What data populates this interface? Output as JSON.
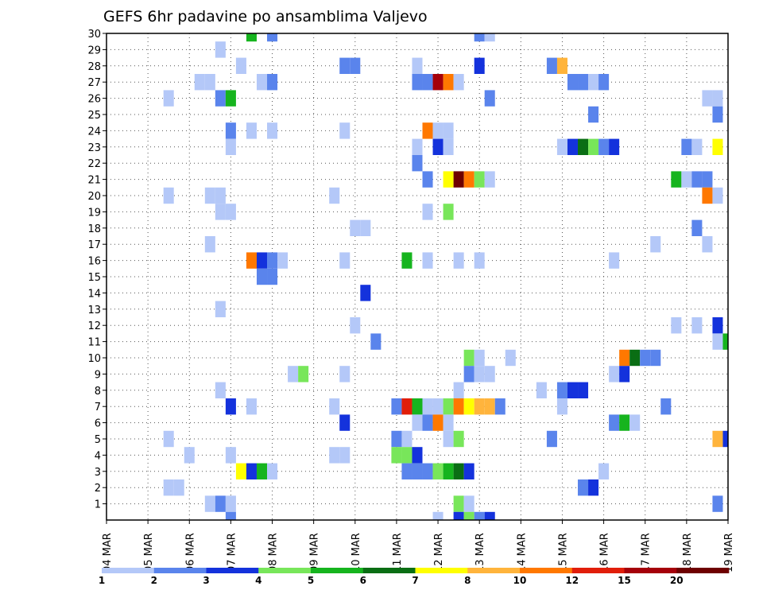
{
  "chart_data": {
    "type": "heatmap",
    "title": "GEFS 6hr padavine po ansamblima Valjevo",
    "xlabel": "",
    "ylabel": "",
    "x_tick_labels": [
      "04 MAR",
      "05 MAR",
      "06 MAR",
      "07 MAR",
      "08 MAR",
      "09 MAR",
      "10 MAR",
      "11 MAR",
      "12 MAR",
      "13 MAR",
      "14 MAR",
      "15 MAR",
      "16 MAR",
      "17 MAR",
      "18 MAR",
      "19 MAR"
    ],
    "y_tick_labels": [
      "1",
      "2",
      "3",
      "4",
      "5",
      "6",
      "7",
      "8",
      "9",
      "10",
      "11",
      "12",
      "13",
      "14",
      "15",
      "16",
      "17",
      "18",
      "19",
      "20",
      "21",
      "22",
      "23",
      "24",
      "25",
      "26",
      "27",
      "28",
      "29",
      "30"
    ],
    "x_unit": "6-hour step",
    "x_range": [
      0,
      60
    ],
    "y_range": [
      0,
      30
    ],
    "grid": true,
    "colorbar": {
      "labels": [
        "1",
        "2",
        "3",
        "4",
        "5",
        "6",
        "7",
        "8",
        "10",
        "12",
        "15",
        "20"
      ],
      "colors": [
        "#b4c8f8",
        "#5a84ec",
        "#1432dc",
        "#78e65a",
        "#16b41e",
        "#0a6e14",
        "#ffff00",
        "#ffb43c",
        "#ff7800",
        "#e11e0a",
        "#a5000a",
        "#6e0000"
      ],
      "placement": "bottom"
    },
    "cells": [
      [
        14,
        30,
        5
      ],
      [
        16,
        30,
        2
      ],
      [
        36,
        30,
        2
      ],
      [
        37,
        30,
        1
      ],
      [
        11,
        29,
        1
      ],
      [
        13,
        28,
        1
      ],
      [
        23,
        28,
        2
      ],
      [
        24,
        28,
        2
      ],
      [
        30,
        28,
        1
      ],
      [
        36,
        28,
        3
      ],
      [
        43,
        28,
        2
      ],
      [
        44,
        28,
        8
      ],
      [
        9,
        27,
        1
      ],
      [
        10,
        27,
        1
      ],
      [
        15,
        27,
        1
      ],
      [
        16,
        27,
        2
      ],
      [
        30,
        27,
        2
      ],
      [
        31,
        27,
        2
      ],
      [
        32,
        27,
        11
      ],
      [
        33,
        27,
        9
      ],
      [
        34,
        27,
        1
      ],
      [
        45,
        27,
        2
      ],
      [
        46,
        27,
        2
      ],
      [
        47,
        27,
        1
      ],
      [
        48,
        27,
        2
      ],
      [
        6,
        26,
        1
      ],
      [
        11,
        26,
        2
      ],
      [
        12,
        26,
        5
      ],
      [
        37,
        26,
        2
      ],
      [
        58,
        26,
        1
      ],
      [
        59,
        26,
        1
      ],
      [
        47,
        25,
        2
      ],
      [
        59,
        25,
        2
      ],
      [
        12,
        24,
        2
      ],
      [
        14,
        24,
        1
      ],
      [
        16,
        24,
        1
      ],
      [
        23,
        24,
        1
      ],
      [
        31,
        24,
        9
      ],
      [
        32,
        24,
        1
      ],
      [
        33,
        24,
        1
      ],
      [
        12,
        23,
        1
      ],
      [
        30,
        23,
        1
      ],
      [
        32,
        23,
        3
      ],
      [
        33,
        23,
        1
      ],
      [
        44,
        23,
        1
      ],
      [
        45,
        23,
        3
      ],
      [
        46,
        23,
        6
      ],
      [
        47,
        23,
        4
      ],
      [
        48,
        23,
        2
      ],
      [
        49,
        23,
        3
      ],
      [
        56,
        23,
        2
      ],
      [
        57,
        23,
        1
      ],
      [
        59,
        23,
        7
      ],
      [
        30,
        22,
        2
      ],
      [
        31,
        21,
        2
      ],
      [
        33,
        21,
        7
      ],
      [
        34,
        21,
        12
      ],
      [
        35,
        21,
        9
      ],
      [
        36,
        21,
        4
      ],
      [
        37,
        21,
        1
      ],
      [
        55,
        21,
        5
      ],
      [
        56,
        21,
        1
      ],
      [
        57,
        21,
        2
      ],
      [
        58,
        21,
        2
      ],
      [
        6,
        20,
        1
      ],
      [
        10,
        20,
        1
      ],
      [
        11,
        20,
        1
      ],
      [
        22,
        20,
        1
      ],
      [
        58,
        20,
        9
      ],
      [
        59,
        20,
        1
      ],
      [
        11,
        19,
        1
      ],
      [
        12,
        19,
        1
      ],
      [
        31,
        19,
        1
      ],
      [
        33,
        19,
        4
      ],
      [
        24,
        18,
        1
      ],
      [
        25,
        18,
        1
      ],
      [
        57,
        18,
        2
      ],
      [
        10,
        17,
        1
      ],
      [
        53,
        17,
        1
      ],
      [
        58,
        17,
        1
      ],
      [
        14,
        16,
        9
      ],
      [
        15,
        16,
        3
      ],
      [
        16,
        16,
        2
      ],
      [
        17,
        16,
        1
      ],
      [
        23,
        16,
        1
      ],
      [
        29,
        16,
        5
      ],
      [
        31,
        16,
        1
      ],
      [
        34,
        16,
        1
      ],
      [
        36,
        16,
        1
      ],
      [
        49,
        16,
        1
      ],
      [
        15,
        15,
        2
      ],
      [
        16,
        15,
        2
      ],
      [
        25,
        14,
        3
      ],
      [
        11,
        13,
        1
      ],
      [
        24,
        12,
        1
      ],
      [
        55,
        12,
        1
      ],
      [
        57,
        12,
        1
      ],
      [
        59,
        12,
        3
      ],
      [
        26,
        11,
        2
      ],
      [
        59,
        11,
        1
      ],
      [
        60,
        11,
        5
      ],
      [
        35,
        10,
        4
      ],
      [
        36,
        10,
        1
      ],
      [
        39,
        10,
        1
      ],
      [
        50,
        10,
        9
      ],
      [
        51,
        10,
        6
      ],
      [
        52,
        10,
        2
      ],
      [
        53,
        10,
        2
      ],
      [
        18,
        9,
        1
      ],
      [
        19,
        9,
        4
      ],
      [
        23,
        9,
        1
      ],
      [
        35,
        9,
        2
      ],
      [
        36,
        9,
        1
      ],
      [
        37,
        9,
        1
      ],
      [
        49,
        9,
        1
      ],
      [
        50,
        9,
        3
      ],
      [
        11,
        8,
        1
      ],
      [
        34,
        8,
        1
      ],
      [
        42,
        8,
        1
      ],
      [
        44,
        8,
        2
      ],
      [
        45,
        8,
        3
      ],
      [
        46,
        8,
        3
      ],
      [
        12,
        7,
        3
      ],
      [
        14,
        7,
        1
      ],
      [
        22,
        7,
        1
      ],
      [
        28,
        7,
        2
      ],
      [
        29,
        7,
        10
      ],
      [
        30,
        7,
        5
      ],
      [
        31,
        7,
        1
      ],
      [
        32,
        7,
        1
      ],
      [
        33,
        7,
        4
      ],
      [
        34,
        7,
        9
      ],
      [
        35,
        7,
        7
      ],
      [
        36,
        7,
        8
      ],
      [
        37,
        7,
        8
      ],
      [
        38,
        7,
        2
      ],
      [
        44,
        7,
        1
      ],
      [
        54,
        7,
        2
      ],
      [
        23,
        6,
        3
      ],
      [
        30,
        6,
        1
      ],
      [
        31,
        6,
        2
      ],
      [
        32,
        6,
        9
      ],
      [
        33,
        6,
        1
      ],
      [
        49,
        6,
        2
      ],
      [
        50,
        6,
        5
      ],
      [
        51,
        6,
        1
      ],
      [
        6,
        5,
        1
      ],
      [
        28,
        5,
        2
      ],
      [
        29,
        5,
        1
      ],
      [
        33,
        5,
        1
      ],
      [
        34,
        5,
        4
      ],
      [
        43,
        5,
        2
      ],
      [
        59,
        5,
        8
      ],
      [
        60,
        5,
        3
      ],
      [
        8,
        4,
        1
      ],
      [
        12,
        4,
        1
      ],
      [
        22,
        4,
        1
      ],
      [
        23,
        4,
        1
      ],
      [
        28,
        4,
        4
      ],
      [
        29,
        4,
        4
      ],
      [
        30,
        4,
        3
      ],
      [
        13,
        3,
        7
      ],
      [
        14,
        3,
        3
      ],
      [
        15,
        3,
        5
      ],
      [
        16,
        3,
        1
      ],
      [
        29,
        3,
        2
      ],
      [
        30,
        3,
        2
      ],
      [
        31,
        3,
        2
      ],
      [
        32,
        3,
        4
      ],
      [
        33,
        3,
        5
      ],
      [
        34,
        3,
        6
      ],
      [
        35,
        3,
        3
      ],
      [
        48,
        3,
        1
      ],
      [
        6,
        2,
        1
      ],
      [
        7,
        2,
        1
      ],
      [
        46,
        2,
        2
      ],
      [
        47,
        2,
        3
      ],
      [
        10,
        1,
        1
      ],
      [
        11,
        1,
        2
      ],
      [
        12,
        1,
        1
      ],
      [
        34,
        1,
        4
      ],
      [
        35,
        1,
        1
      ],
      [
        59,
        1,
        2
      ],
      [
        12,
        0,
        2
      ],
      [
        32,
        0,
        1
      ],
      [
        34,
        0,
        3
      ],
      [
        35,
        0,
        4
      ],
      [
        36,
        0,
        2
      ],
      [
        37,
        0,
        3
      ]
    ]
  }
}
